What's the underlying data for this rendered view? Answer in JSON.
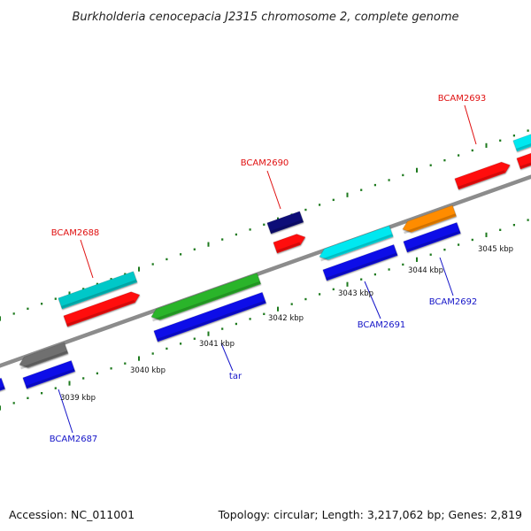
{
  "title": "Burkholderia cenocepacia J2315 chromosome 2, complete genome",
  "accession": "Accession: NC_011001",
  "summary": "Topology: circular; Length: 3,217,062 bp; Genes: 2,819",
  "colors": {
    "backbone": "#8c8c8c",
    "tick": "#1e7a1e",
    "label_forward": "#e01010",
    "label_reverse": "#1414c8"
  },
  "tick_labels": [
    "3039 kbp",
    "3040 kbp",
    "3041 kbp",
    "3042 kbp",
    "3043 kbp",
    "3044 kbp",
    "3045 kbp"
  ],
  "gene_labels": [
    {
      "text": "BCAM2688",
      "strand": "forward"
    },
    {
      "text": "BCAM2690",
      "strand": "forward"
    },
    {
      "text": "BCAM2693",
      "strand": "forward"
    },
    {
      "text": "BCAM2687",
      "strand": "reverse"
    },
    {
      "text": "tar",
      "strand": "reverse"
    },
    {
      "text": "BCAM2691",
      "strand": "reverse"
    },
    {
      "text": "BCAM2692",
      "strand": "reverse"
    }
  ],
  "features": [
    {
      "name": "forward-cds-1",
      "color": "#00c8c8"
    },
    {
      "name": "forward-cds-2",
      "color": "#ff1010"
    },
    {
      "name": "forward-cds-3",
      "color": "#0c0c78"
    },
    {
      "name": "forward-cds-4",
      "color": "#ff1010"
    },
    {
      "name": "forward-cds-5",
      "color": "#ff1010"
    },
    {
      "name": "forward-cds-6",
      "color": "#00e8f0"
    },
    {
      "name": "forward-cds-7",
      "color": "#ff1010"
    },
    {
      "name": "reverse-cds-1",
      "color": "#1010e8"
    },
    {
      "name": "reverse-cds-2",
      "color": "#707070"
    },
    {
      "name": "reverse-cds-3",
      "color": "#1010e8"
    },
    {
      "name": "reverse-cds-4",
      "color": "#2cb42c"
    },
    {
      "name": "reverse-cds-5",
      "color": "#1010e8"
    },
    {
      "name": "reverse-cds-6",
      "color": "#00e8f0"
    },
    {
      "name": "reverse-cds-7",
      "color": "#1010e8"
    },
    {
      "name": "reverse-cds-8",
      "color": "#ff8c00"
    },
    {
      "name": "reverse-cds-9",
      "color": "#1010e8"
    }
  ]
}
